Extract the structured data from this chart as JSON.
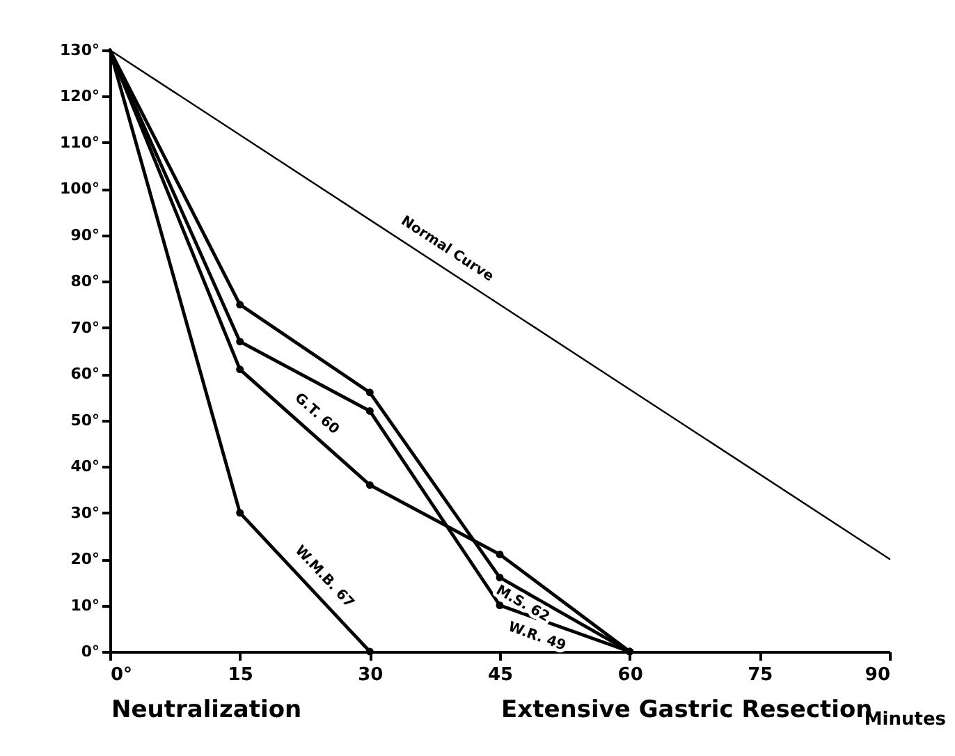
{
  "chart_data": {
    "type": "line",
    "xlabel": "Minutes",
    "marker": "circle",
    "line_style": "solid",
    "xlim": [
      0,
      90
    ],
    "ylim": [
      0,
      130
    ],
    "xticks": [
      {
        "value": 0,
        "label": "0°"
      },
      15,
      30,
      45,
      60,
      75,
      90
    ],
    "yticks": [
      {
        "value": 0,
        "label": "0°"
      },
      {
        "value": 10,
        "label": "10°"
      },
      {
        "value": 20,
        "label": "20°"
      },
      {
        "value": 30,
        "label": "30°"
      },
      {
        "value": 40,
        "label": "40°"
      },
      {
        "value": 50,
        "label": "50°"
      },
      {
        "value": 60,
        "label": "60°"
      },
      {
        "value": 70,
        "label": "70°"
      },
      {
        "value": 80,
        "label": "80°"
      },
      {
        "value": 90,
        "label": "90°"
      },
      {
        "value": 100,
        "label": "100°"
      },
      {
        "value": 110,
        "label": "110°"
      },
      {
        "value": 120,
        "label": "120°"
      },
      {
        "value": 130,
        "label": "130°"
      }
    ],
    "series": [
      {
        "name": "Normal Curve",
        "color": "#000000",
        "marker": "none",
        "x": [
          0,
          90
        ],
        "values": [
          130,
          20
        ]
      },
      {
        "name": "M.S. 62",
        "color": "#000000",
        "x": [
          0,
          15,
          30,
          45,
          60
        ],
        "values": [
          130,
          75,
          56,
          16,
          0
        ]
      },
      {
        "name": "W.R. 49",
        "color": "#000000",
        "x": [
          0,
          15,
          30,
          45,
          60
        ],
        "values": [
          130,
          67,
          52,
          10,
          0
        ]
      },
      {
        "name": "G.T. 60",
        "color": "#000000",
        "x": [
          0,
          15,
          30,
          45,
          60
        ],
        "values": [
          130,
          61,
          36,
          21,
          0
        ]
      },
      {
        "name": "W.M.B. 67",
        "color": "#000000",
        "x": [
          0,
          15,
          30
        ],
        "values": [
          130,
          30,
          0
        ]
      }
    ],
    "annotations": [
      "Neutralization",
      "Extensive Gastric Resection"
    ]
  }
}
